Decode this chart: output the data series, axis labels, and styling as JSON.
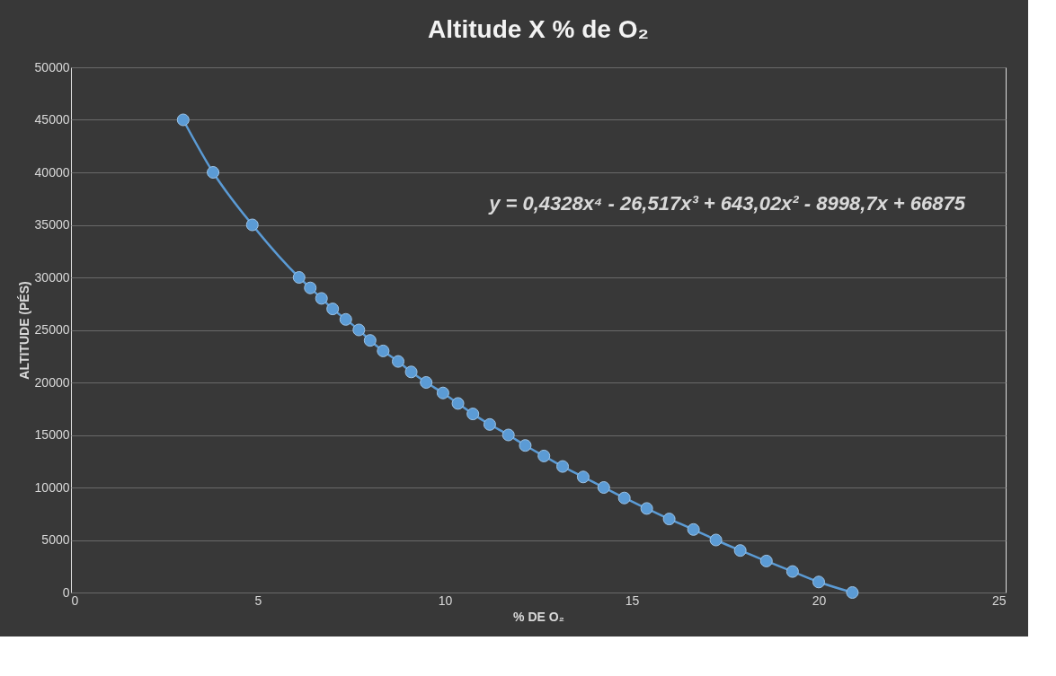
{
  "chart_data": {
    "type": "line",
    "title": "Altitude X % de O₂",
    "xlabel": "% DE O₂",
    "ylabel": "ALTITUDE (PÉS)",
    "x": [
      3.0,
      3.8,
      4.85,
      6.1,
      6.4,
      6.7,
      7.0,
      7.35,
      7.7,
      8.0,
      8.35,
      8.75,
      9.1,
      9.5,
      9.95,
      10.35,
      10.75,
      11.2,
      11.7,
      12.15,
      12.65,
      13.15,
      13.7,
      14.25,
      14.8,
      15.4,
      16.0,
      16.65,
      17.25,
      17.9,
      18.6,
      19.3,
      20.0,
      20.9
    ],
    "series": [
      {
        "color": "#5b9bd5",
        "values": [
          45000,
          40000,
          35000,
          30000,
          29000,
          28000,
          27000,
          26000,
          25000,
          24000,
          23000,
          22000,
          21000,
          20000,
          19000,
          18000,
          17000,
          16000,
          15000,
          14000,
          13000,
          12000,
          11000,
          10000,
          9000,
          8000,
          7000,
          6000,
          5000,
          4000,
          3000,
          2000,
          1000,
          0
        ]
      }
    ],
    "xlim": [
      0,
      25
    ],
    "xticks": [
      0,
      5,
      10,
      15,
      20,
      25
    ],
    "ylim": [
      0,
      50000
    ],
    "yticks": [
      0,
      5000,
      10000,
      15000,
      20000,
      25000,
      30000,
      35000,
      40000,
      45000,
      50000
    ],
    "grid": "y",
    "marker": "circle",
    "line_style": "solid",
    "annotations": [
      "y = 0,4328x⁴ - 26,517x³ + 643,02x² - 8998,7x + 66875"
    ]
  }
}
